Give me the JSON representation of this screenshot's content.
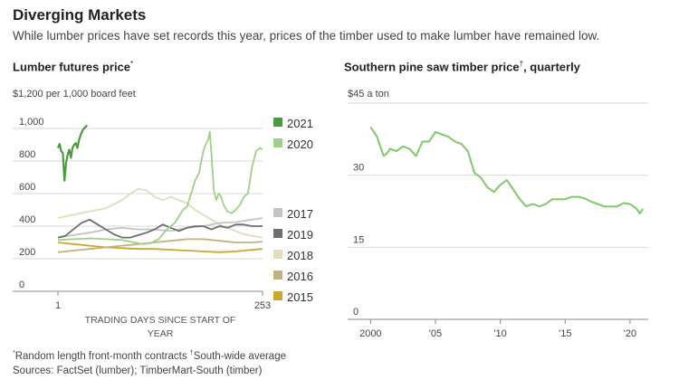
{
  "header": {
    "title": "Diverging Markets",
    "subtitle": "While lumber prices have set records this year, prices of the timber used to make lumber have remained low."
  },
  "left": {
    "title": "Lumber futures price",
    "title_mark": "*",
    "unit": "$1,200 per 1,000 board feet",
    "xlabel": "TRADING DAYS SINCE START OF YEAR"
  },
  "right": {
    "title": "Southern pine saw timber price",
    "title_mark": "†",
    "title_tail": ", quarterly",
    "unit": "$45 a ton"
  },
  "footer": {
    "note1_mark": "*",
    "note1": "Random length front-month contracts",
    "note2_mark": "†",
    "note2": "South-wide average",
    "sources": "Sources: FactSet (lumber); TimberMart-South (timber)"
  },
  "colors": {
    "2021": "#4c9a3e",
    "2020": "#9fd08a",
    "2017": "#c4c4c4",
    "2019": "#6e6e6e",
    "2018": "#e2dcbc",
    "2016": "#c0b27e",
    "2015": "#c9a82c",
    "timber": "#7ec96a"
  },
  "chart_data": [
    {
      "type": "line",
      "title": "Lumber futures price",
      "ylabel": "$1,200 per 1,000 board feet",
      "xlabel": "TRADING DAYS SINCE START OF YEAR",
      "xlim": [
        1,
        253
      ],
      "ylim": [
        0,
        1200
      ],
      "xticks": [
        1,
        253
      ],
      "yticks": [
        0,
        200,
        400,
        600,
        800,
        1000
      ],
      "ytick_labels": [
        "0",
        "200",
        "400",
        "600",
        "800",
        "1,000"
      ],
      "legend": [
        "2021",
        "2020",
        "2017",
        "2019",
        "2018",
        "2016",
        "2015"
      ],
      "series": [
        {
          "name": "2021",
          "x": [
            1,
            3,
            5,
            7,
            9,
            11,
            13,
            15,
            17,
            19,
            21,
            23,
            25,
            27,
            29,
            31,
            33,
            35,
            37
          ],
          "y": [
            880,
            905,
            860,
            850,
            680,
            790,
            840,
            870,
            820,
            880,
            900,
            910,
            880,
            930,
            960,
            985,
            1000,
            1010,
            1020
          ]
        },
        {
          "name": "2020",
          "x": [
            1,
            20,
            40,
            60,
            80,
            95,
            105,
            115,
            125,
            135,
            145,
            155,
            160,
            165,
            170,
            175,
            180,
            183,
            186,
            188,
            190,
            193,
            196,
            199,
            202,
            205,
            210,
            215,
            220,
            225,
            230,
            235,
            240,
            245,
            250,
            253
          ],
          "y": [
            315,
            320,
            325,
            320,
            315,
            300,
            290,
            295,
            320,
            380,
            420,
            500,
            520,
            600,
            680,
            730,
            860,
            900,
            930,
            980,
            850,
            620,
            560,
            600,
            580,
            530,
            490,
            480,
            500,
            530,
            580,
            600,
            760,
            860,
            880,
            870
          ]
        },
        {
          "name": "2017",
          "x": [
            1,
            20,
            40,
            60,
            80,
            100,
            120,
            140,
            160,
            180,
            200,
            220,
            240,
            253
          ],
          "y": [
            330,
            345,
            360,
            380,
            390,
            380,
            380,
            370,
            390,
            400,
            420,
            425,
            440,
            450
          ]
        },
        {
          "name": "2019",
          "x": [
            1,
            10,
            20,
            30,
            40,
            50,
            60,
            70,
            80,
            90,
            100,
            110,
            120,
            130,
            140,
            150,
            160,
            170,
            180,
            190,
            200,
            210,
            220,
            230,
            240,
            253
          ],
          "y": [
            330,
            340,
            380,
            420,
            440,
            410,
            380,
            350,
            330,
            330,
            345,
            360,
            380,
            410,
            390,
            370,
            390,
            400,
            400,
            380,
            400,
            390,
            410,
            410,
            400,
            400
          ]
        },
        {
          "name": "2018",
          "x": [
            1,
            20,
            40,
            60,
            80,
            90,
            100,
            110,
            120,
            130,
            140,
            150,
            160,
            170,
            180,
            190,
            200,
            210,
            220,
            230,
            240,
            253
          ],
          "y": [
            450,
            470,
            490,
            510,
            560,
            600,
            630,
            620,
            580,
            560,
            580,
            560,
            540,
            500,
            470,
            440,
            410,
            390,
            370,
            350,
            340,
            330
          ]
        },
        {
          "name": "2016",
          "x": [
            1,
            20,
            40,
            60,
            80,
            100,
            120,
            140,
            160,
            180,
            200,
            220,
            240,
            253
          ],
          "y": [
            240,
            250,
            260,
            270,
            280,
            290,
            300,
            310,
            320,
            320,
            310,
            300,
            300,
            305
          ]
        },
        {
          "name": "2015",
          "x": [
            1,
            20,
            40,
            60,
            80,
            100,
            120,
            140,
            160,
            180,
            200,
            220,
            240,
            253
          ],
          "y": [
            300,
            290,
            280,
            270,
            265,
            260,
            260,
            255,
            250,
            245,
            240,
            245,
            255,
            260
          ]
        }
      ]
    },
    {
      "type": "line",
      "title": "Southern pine saw timber price, quarterly",
      "ylabel": "$45 a ton",
      "xlim": [
        1999,
        2021.4
      ],
      "ylim": [
        0,
        45
      ],
      "yticks": [
        0,
        15,
        30,
        45
      ],
      "ytick_labels": [
        "0",
        "15",
        "30",
        ""
      ],
      "xticks": [
        2000,
        2005,
        2010,
        2015,
        2020
      ],
      "xtick_labels": [
        "2000",
        "'05",
        "'10",
        "'15",
        "'20"
      ],
      "series": [
        {
          "name": "Southern pine saw timber",
          "x": [
            2000,
            2000.5,
            2000.75,
            2001,
            2001.25,
            2001.5,
            2002,
            2002.5,
            2003,
            2003.5,
            2004,
            2004.5,
            2005,
            2005.5,
            2006,
            2006.5,
            2007,
            2007.5,
            2008,
            2008.5,
            2009,
            2009.5,
            2010,
            2010.5,
            2011,
            2011.5,
            2012,
            2012.5,
            2013,
            2013.5,
            2014,
            2014.5,
            2015,
            2015.5,
            2016,
            2016.5,
            2017,
            2017.5,
            2018,
            2018.5,
            2019,
            2019.5,
            2020,
            2020.5,
            2020.75,
            2021
          ],
          "y": [
            40,
            38,
            36,
            34,
            34.5,
            35.5,
            35,
            36,
            35.5,
            34,
            37,
            37,
            39,
            38.5,
            38,
            37,
            36.5,
            35,
            30.5,
            29.5,
            27.5,
            26.5,
            28,
            29,
            27,
            25,
            23.5,
            24,
            23.5,
            24,
            25,
            25,
            25,
            25.5,
            25.5,
            25.2,
            24.5,
            24,
            23.5,
            23.5,
            23.5,
            24.2,
            24,
            23,
            22,
            23
          ]
        }
      ]
    }
  ]
}
